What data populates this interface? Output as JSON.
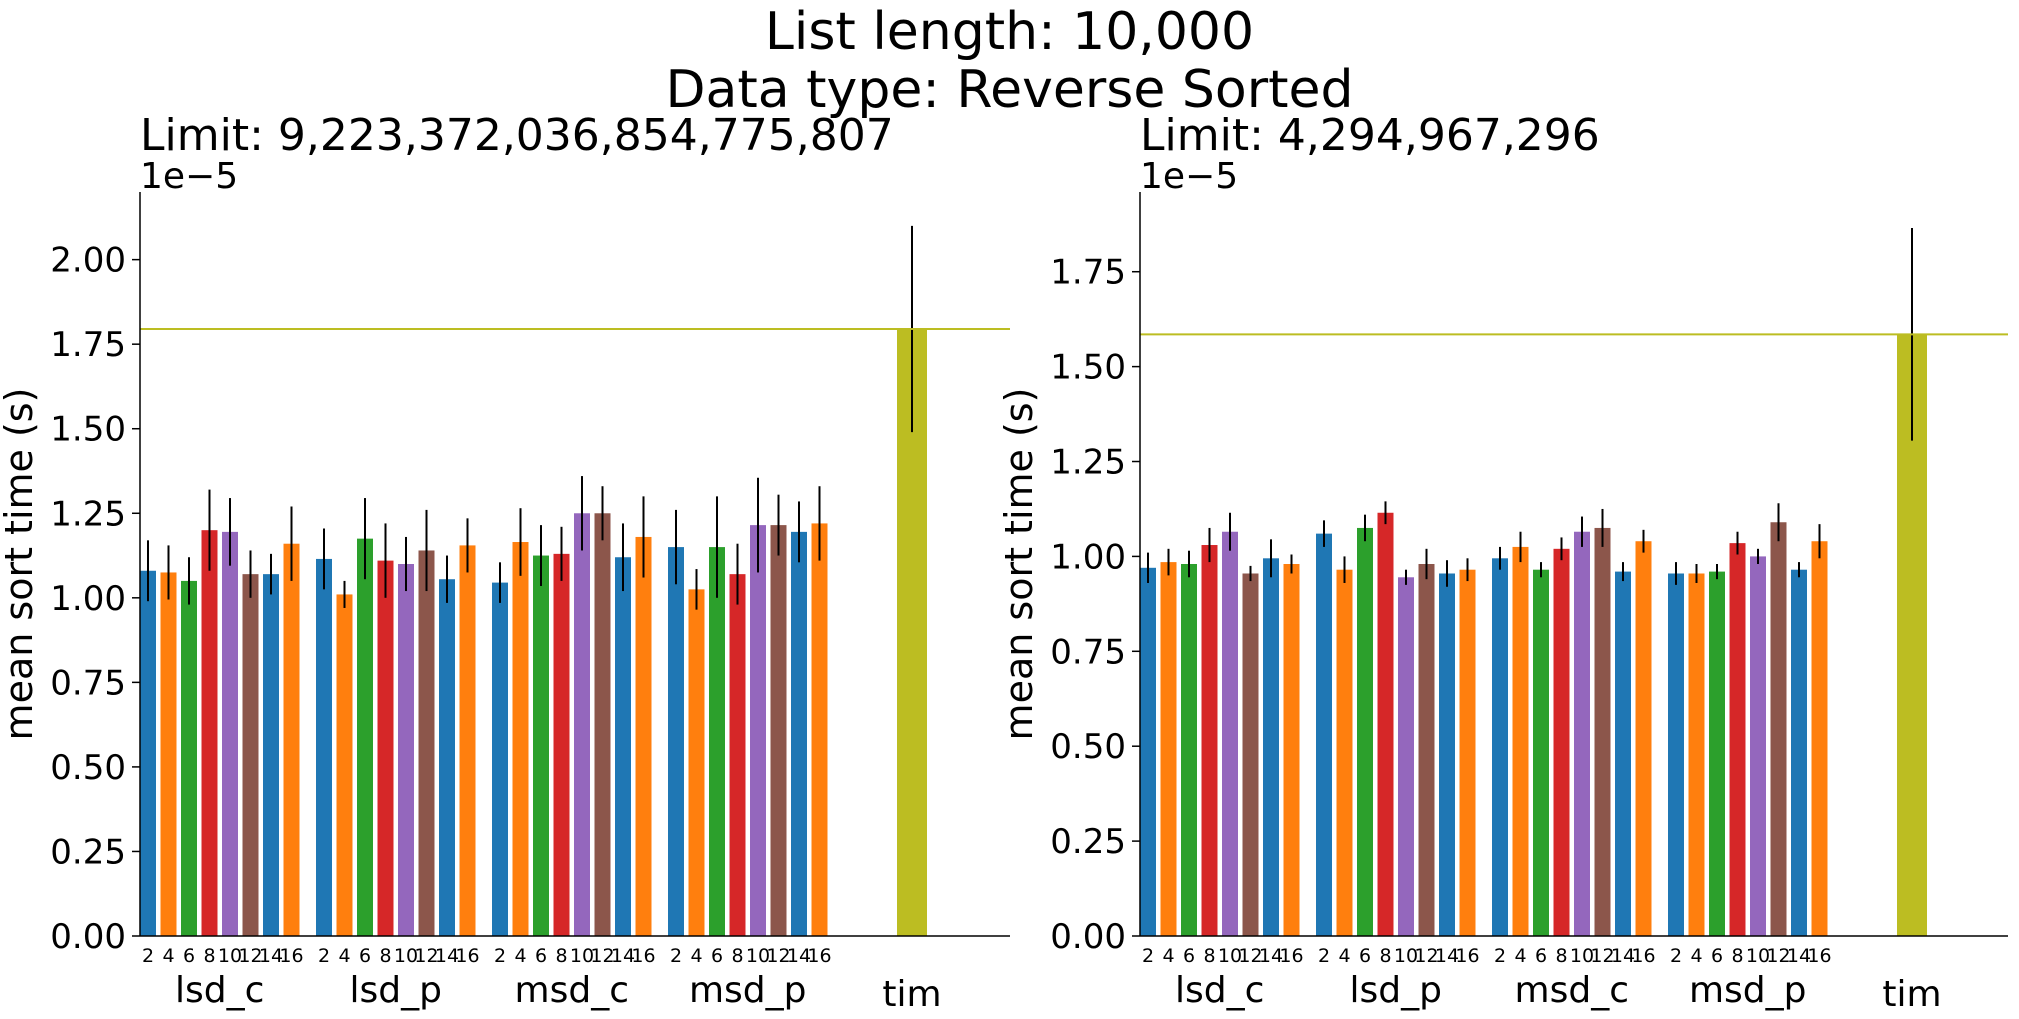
{
  "suptitle": {
    "line1": "List length: 10,000",
    "line2": "Data type: Reverse Sorted"
  },
  "colors": {
    "cycle": [
      "#1f77b4",
      "#ff7f0e",
      "#2ca02c",
      "#d62728",
      "#9467bd",
      "#8c564b",
      "#1f77b4",
      "#ff7f0e"
    ],
    "tim": "#bcbd22",
    "error": "#000000"
  },
  "chart_data": [
    {
      "type": "bar",
      "title": "Limit: 9,223,372,036,854,775,807",
      "ylabel": "mean sort time (s)",
      "offset_text": "1e−5",
      "ylim": [
        0,
        2.2
      ],
      "yticks": [
        0,
        0.25,
        0.5,
        0.75,
        1.0,
        1.25,
        1.5,
        1.75,
        2.0
      ],
      "ytick_labels": [
        "0.00",
        "0.25",
        "0.50",
        "0.75",
        "1.00",
        "1.25",
        "1.50",
        "1.75",
        "2.00"
      ],
      "groups": [
        {
          "label": "lsd_c",
          "sublabels": [
            "2",
            "4",
            "6",
            "8",
            "10",
            "12",
            "14",
            "16"
          ],
          "values": [
            1.08,
            1.075,
            1.05,
            1.2,
            1.195,
            1.07,
            1.07,
            1.16
          ],
          "errors": [
            0.09,
            0.08,
            0.07,
            0.12,
            0.1,
            0.07,
            0.06,
            0.11
          ]
        },
        {
          "label": "lsd_p",
          "sublabels": [
            "2",
            "4",
            "6",
            "8",
            "10",
            "12",
            "14",
            "16"
          ],
          "values": [
            1.115,
            1.01,
            1.175,
            1.11,
            1.1,
            1.14,
            1.055,
            1.155
          ],
          "errors": [
            0.09,
            0.04,
            0.12,
            0.11,
            0.08,
            0.12,
            0.07,
            0.08
          ]
        },
        {
          "label": "msd_c",
          "sublabels": [
            "2",
            "4",
            "6",
            "8",
            "10",
            "12",
            "14",
            "16"
          ],
          "values": [
            1.045,
            1.165,
            1.125,
            1.13,
            1.25,
            1.25,
            1.12,
            1.18
          ],
          "errors": [
            0.06,
            0.1,
            0.09,
            0.08,
            0.11,
            0.08,
            0.1,
            0.12
          ]
        },
        {
          "label": "msd_p",
          "sublabels": [
            "2",
            "4",
            "6",
            "8",
            "10",
            "12",
            "14",
            "16"
          ],
          "values": [
            1.15,
            1.025,
            1.15,
            1.07,
            1.215,
            1.215,
            1.195,
            1.22
          ],
          "errors": [
            0.11,
            0.06,
            0.15,
            0.09,
            0.14,
            0.09,
            0.09,
            0.11
          ]
        }
      ],
      "tim": {
        "label": "tim",
        "value": 1.795,
        "error": 0.305
      },
      "hline": 1.795
    },
    {
      "type": "bar",
      "title": "Limit: 4,294,967,296",
      "ylabel": "mean sort time (s)",
      "offset_text": "1e−5",
      "ylim": [
        0,
        1.96
      ],
      "yticks": [
        0,
        0.25,
        0.5,
        0.75,
        1.0,
        1.25,
        1.5,
        1.75
      ],
      "ytick_labels": [
        "0.00",
        "0.25",
        "0.50",
        "0.75",
        "1.00",
        "1.25",
        "1.50",
        "1.75"
      ],
      "groups": [
        {
          "label": "lsd_c",
          "sublabels": [
            "2",
            "4",
            "6",
            "8",
            "10",
            "12",
            "14",
            "16"
          ],
          "values": [
            0.97,
            0.985,
            0.98,
            1.03,
            1.065,
            0.955,
            0.995,
            0.98
          ],
          "errors": [
            0.04,
            0.035,
            0.035,
            0.045,
            0.05,
            0.02,
            0.05,
            0.025
          ]
        },
        {
          "label": "lsd_p",
          "sublabels": [
            "2",
            "4",
            "6",
            "8",
            "10",
            "12",
            "14",
            "16"
          ],
          "values": [
            1.06,
            0.965,
            1.075,
            1.115,
            0.945,
            0.98,
            0.955,
            0.965
          ],
          "errors": [
            0.035,
            0.035,
            0.035,
            0.03,
            0.02,
            0.04,
            0.035,
            0.03
          ]
        },
        {
          "label": "msd_c",
          "sublabels": [
            "2",
            "4",
            "6",
            "8",
            "10",
            "12",
            "14",
            "16"
          ],
          "values": [
            0.995,
            1.025,
            0.965,
            1.02,
            1.065,
            1.075,
            0.96,
            1.04
          ],
          "errors": [
            0.03,
            0.04,
            0.02,
            0.03,
            0.04,
            0.05,
            0.025,
            0.03
          ]
        },
        {
          "label": "msd_p",
          "sublabels": [
            "2",
            "4",
            "6",
            "8",
            "10",
            "12",
            "14",
            "16"
          ],
          "values": [
            0.955,
            0.955,
            0.96,
            1.035,
            1.0,
            1.09,
            0.965,
            1.04
          ],
          "errors": [
            0.03,
            0.025,
            0.02,
            0.03,
            0.02,
            0.05,
            0.02,
            0.045
          ]
        }
      ],
      "tim": {
        "label": "tim",
        "value": 1.585,
        "error": 0.28
      },
      "hline": 1.585
    }
  ]
}
